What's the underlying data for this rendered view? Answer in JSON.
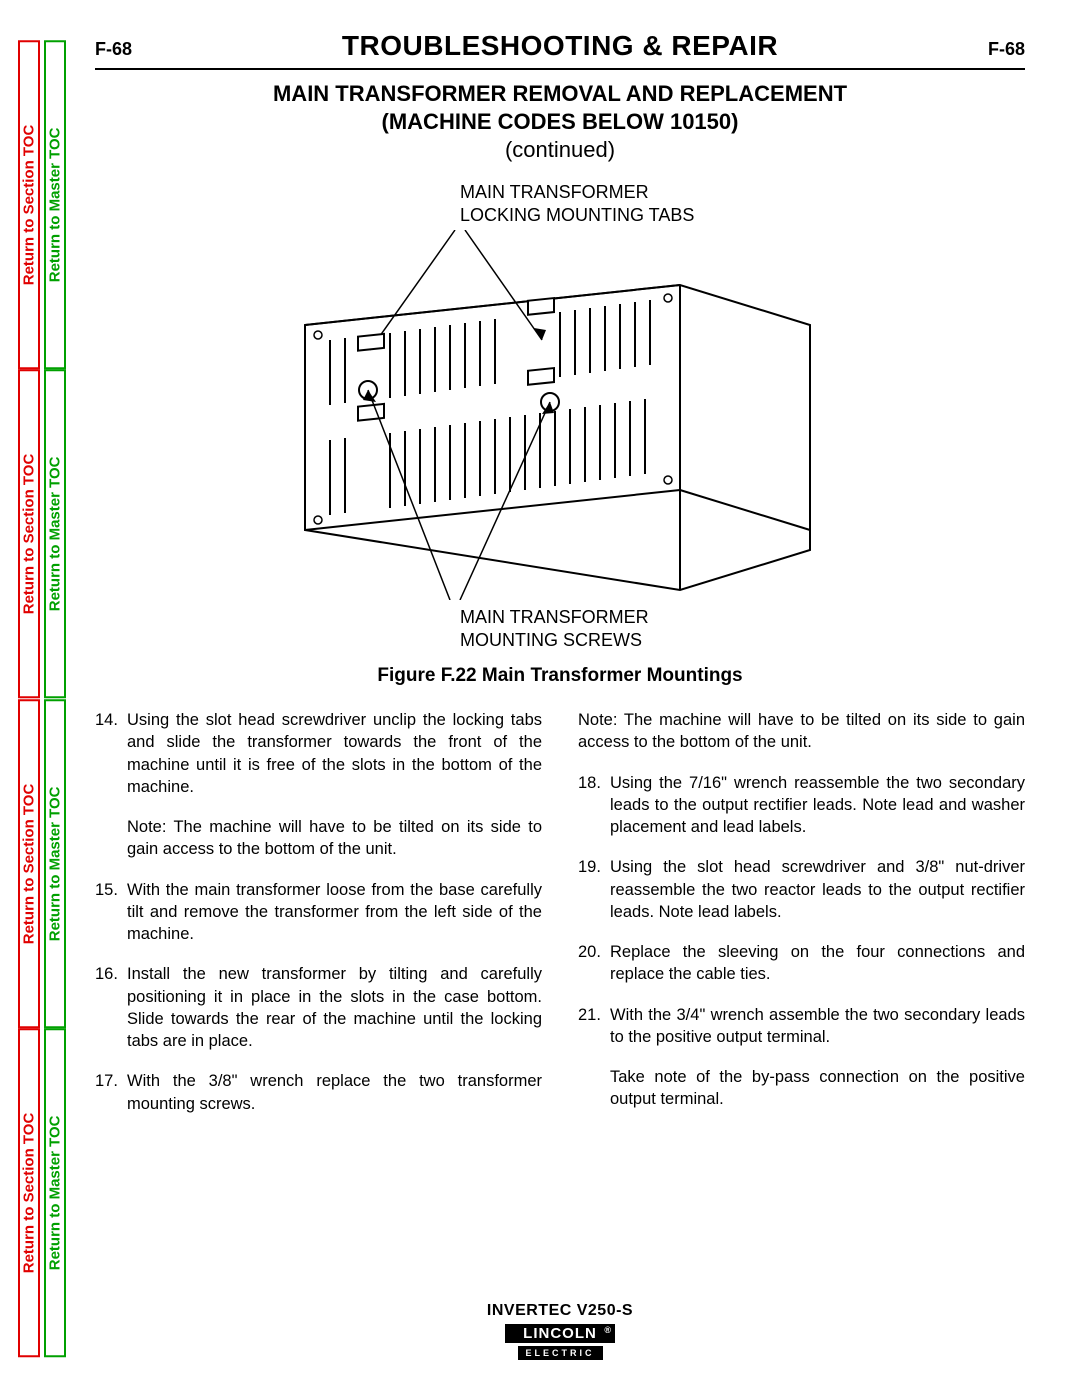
{
  "side_tabs": {
    "section_label": "Return to Section TOC",
    "master_label": "Return to Master TOC",
    "section_color": "#e00000",
    "master_color": "#00a000"
  },
  "header": {
    "page_num_left": "F-68",
    "page_num_right": "F-68",
    "section_title": "TROUBLESHOOTING & REPAIR"
  },
  "subtitle": {
    "line1": "MAIN TRANSFORMER REMOVAL AND REPLACEMENT",
    "line2": "(MACHINE CODES BELOW 10150)",
    "continued": "(continued)"
  },
  "figure": {
    "callout_top_l1": "MAIN TRANSFORMER",
    "callout_top_l2": "LOCKING MOUNTING TABS",
    "callout_bottom_l1": "MAIN TRANSFORMER",
    "callout_bottom_l2": "MOUNTING SCREWS",
    "caption": "Figure F.22 Main Transformer Mountings"
  },
  "steps_left": [
    {
      "n": "14.",
      "t": "Using the slot head screwdriver unclip the locking tabs and slide the transformer towards the front of the machine until it is free of the slots in the bottom of the machine."
    },
    {
      "note": "Note: The machine will have to be tilted on its side to gain access to the bottom of the unit."
    },
    {
      "n": "15.",
      "t": "With the main transformer loose from the base carefully tilt and remove the transformer from the left side of the machine."
    },
    {
      "n": "16.",
      "t": "Install the new transformer by tilting and carefully positioning it in place in the slots in the case bottom. Slide towards the rear of the machine until the locking tabs are in place."
    },
    {
      "n": "17.",
      "t": "With the 3/8\" wrench replace the two transformer mounting screws."
    }
  ],
  "steps_right": [
    {
      "note": "Note: The machine will have to be tilted on its side to gain access to the bottom of the unit."
    },
    {
      "n": "18.",
      "t": "Using the 7/16\" wrench reassemble the two secondary leads to the output rectifier leads. Note lead and washer placement and lead labels."
    },
    {
      "n": "19.",
      "t": "Using the slot head screwdriver and 3/8\" nut-driver reassemble the two reactor leads to the output rectifier leads. Note lead labels."
    },
    {
      "n": "20.",
      "t": "Replace the sleeving on the four connections and replace the cable ties."
    },
    {
      "n": "21.",
      "t": "With the 3/4\" wrench assemble the two secondary leads to the positive output terminal."
    },
    {
      "note": "Take note of the by-pass connection on the positive output terminal."
    }
  ],
  "footer": {
    "model": "INVERTEC V250-S",
    "logo_top": "LINCOLN",
    "logo_reg": "®",
    "logo_bot": "ELECTRIC"
  }
}
